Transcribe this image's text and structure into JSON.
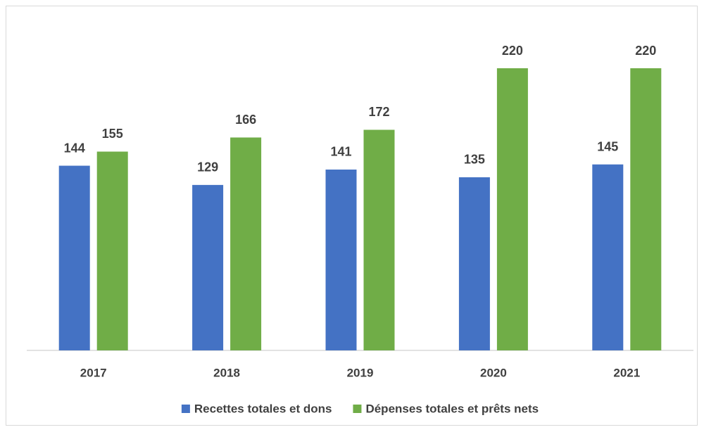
{
  "chart_data": {
    "type": "bar",
    "categories": [
      "2017",
      "2018",
      "2019",
      "2020",
      "2021"
    ],
    "series": [
      {
        "name": "Recettes totales et dons",
        "color": "#4472c4",
        "values": [
          144,
          129,
          141,
          135,
          145
        ]
      },
      {
        "name": "Dépenses totales et prêts nets",
        "color": "#70ad47",
        "values": [
          155,
          166,
          172,
          220,
          220
        ]
      }
    ],
    "legend": "bottom"
  }
}
